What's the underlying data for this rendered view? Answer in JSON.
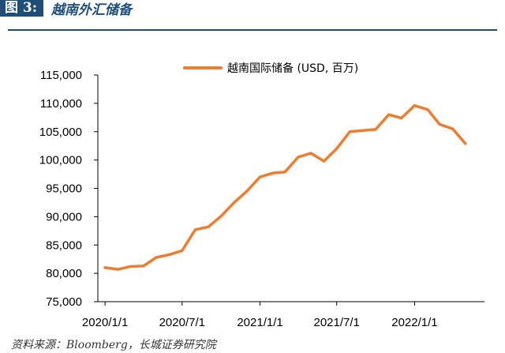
{
  "figure": {
    "number": "图 3:",
    "title": "越南外汇储备"
  },
  "source": "资料来源：Bloomberg，长城证券研究院",
  "colors": {
    "line": "#ed7d31",
    "header": "#1f4e79",
    "axis": "#000000"
  },
  "chart_data": {
    "type": "line",
    "title": "",
    "xlabel": "",
    "ylabel": "",
    "ylim": [
      75000,
      115000
    ],
    "yticks": [
      75000,
      80000,
      85000,
      90000,
      95000,
      100000,
      105000,
      110000,
      115000
    ],
    "ytick_labels": [
      "75,000",
      "80,000",
      "85,000",
      "90,000",
      "95,000",
      "100,000",
      "105,000",
      "110,000",
      "115,000"
    ],
    "x_axis_start": "2019-12-15",
    "x_axis_end": "2022-06-15",
    "xticks": [
      "2020-01-01",
      "2020-07-01",
      "2021-01-01",
      "2021-07-01",
      "2022-01-01"
    ],
    "xtick_labels": [
      "2020/1/1",
      "2020/7/1",
      "2021/1/1",
      "2021/7/1",
      "2022/1/1"
    ],
    "grid": false,
    "legend_position": "top-right",
    "series": [
      {
        "name": "越南国际储备 (USD, 百万)",
        "x": [
          "2020-01-01",
          "2020-02-01",
          "2020-03-01",
          "2020-04-01",
          "2020-05-01",
          "2020-06-01",
          "2020-07-01",
          "2020-08-01",
          "2020-09-01",
          "2020-10-01",
          "2020-11-01",
          "2020-12-01",
          "2021-01-01",
          "2021-02-01",
          "2021-03-01",
          "2021-04-01",
          "2021-05-01",
          "2021-06-01",
          "2021-07-01",
          "2021-08-01",
          "2021-09-01",
          "2021-10-01",
          "2021-11-01",
          "2021-12-01",
          "2022-01-01",
          "2022-02-01",
          "2022-03-01",
          "2022-04-01",
          "2022-05-01"
        ],
        "values": [
          81000,
          80700,
          81200,
          81300,
          82800,
          83300,
          84000,
          87700,
          88200,
          90100,
          92500,
          94500,
          97000,
          97700,
          97900,
          100500,
          101200,
          99800,
          102000,
          105000,
          105200,
          105400,
          108000,
          107400,
          109600,
          108900,
          106300,
          105500,
          102900
        ]
      }
    ]
  }
}
